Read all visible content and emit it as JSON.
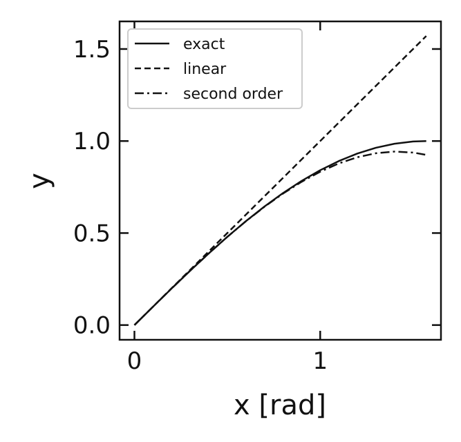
{
  "chart_data": {
    "type": "line",
    "title": "",
    "xlabel": "x [rad]",
    "ylabel": "y",
    "xlim": [
      -0.08,
      1.65
    ],
    "ylim": [
      -0.08,
      1.65
    ],
    "x_ticks": [
      {
        "value": 0,
        "label": "0"
      },
      {
        "value": 1,
        "label": "1"
      }
    ],
    "y_ticks": [
      {
        "value": 0.0,
        "label": "0.0"
      },
      {
        "value": 0.5,
        "label": "0.5"
      },
      {
        "value": 1.0,
        "label": "1.0"
      },
      {
        "value": 1.5,
        "label": "1.5"
      }
    ],
    "grid": false,
    "legend_position": "upper-left",
    "series": [
      {
        "name": "exact",
        "dash": "solid",
        "x": [
          0,
          0.1,
          0.2,
          0.3,
          0.4,
          0.5,
          0.6,
          0.7,
          0.8,
          0.9,
          1.0,
          1.1,
          1.2,
          1.3,
          1.4,
          1.5,
          1.5708
        ],
        "y": [
          0,
          0.0998,
          0.1987,
          0.2955,
          0.3894,
          0.4794,
          0.5646,
          0.6442,
          0.7174,
          0.7833,
          0.8415,
          0.8912,
          0.932,
          0.9636,
          0.9854,
          0.9975,
          1.0
        ]
      },
      {
        "name": "linear",
        "dash": "dashed",
        "x": [
          0,
          0.5,
          1.0,
          1.5708
        ],
        "y": [
          0,
          0.5,
          1.0,
          1.5708
        ]
      },
      {
        "name": "second order",
        "dash": "dashdot",
        "x": [
          0,
          0.1,
          0.2,
          0.3,
          0.4,
          0.5,
          0.6,
          0.7,
          0.8,
          0.9,
          1.0,
          1.1,
          1.2,
          1.3,
          1.4,
          1.5,
          1.5708
        ],
        "y": [
          0,
          0.0998,
          0.1987,
          0.2955,
          0.3893,
          0.4792,
          0.564,
          0.6428,
          0.7147,
          0.7785,
          0.8333,
          0.8782,
          0.912,
          0.9338,
          0.9427,
          0.9375,
          0.9248
        ]
      }
    ]
  }
}
